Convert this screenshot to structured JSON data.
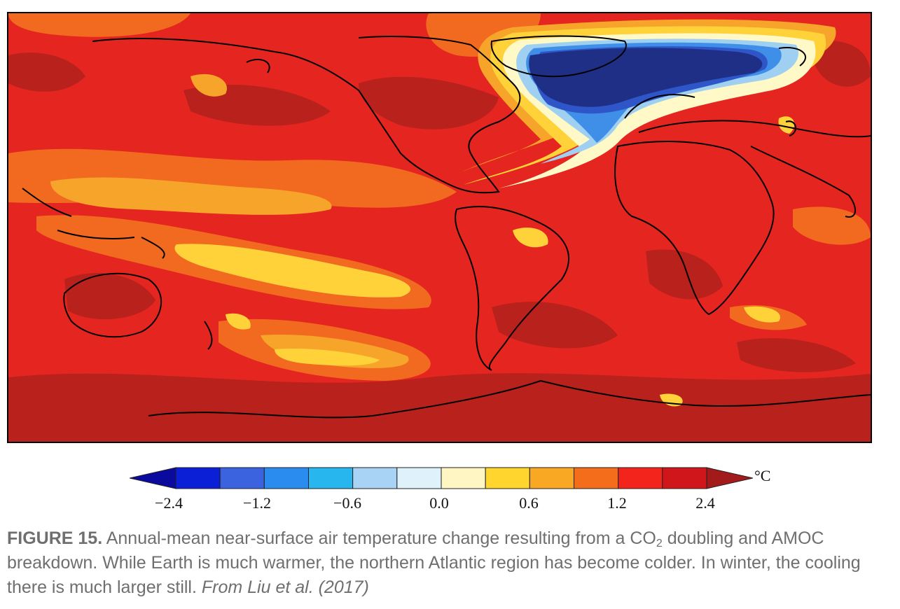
{
  "map": {
    "colors": {
      "deep_blue": "#1f2f86",
      "blue": "#2f56c9",
      "mid_blue": "#3f8ee8",
      "light_blue": "#9fd0f2",
      "pale": "#fff9c8",
      "yellow": "#ffd23a",
      "orange_light": "#f7a52a",
      "orange": "#f26a1f",
      "red": "#e5251f",
      "dark_red": "#b8211c",
      "coast": "#000000"
    }
  },
  "colorbar": {
    "unit": "°C",
    "tick_labels": [
      "−2.4",
      "−1.2",
      "−0.6",
      "0.0",
      "0.6",
      "1.2",
      "2.4"
    ],
    "bin_colors": [
      "#0a0a9e",
      "#0b1fd6",
      "#3b63e0",
      "#2b8cf0",
      "#27b7ee",
      "#a9d3f5",
      "#dff2fb",
      "#fff6c4",
      "#ffd52e",
      "#f9a823",
      "#f46d1b",
      "#f3241c",
      "#d0161a",
      "#a31a1a"
    ]
  },
  "caption": {
    "label": "FIGURE 15.",
    "text_before_sub": " Annual-mean near-surface air temperature change resulting from a CO",
    "subscript": "2",
    "text_after_sub": " doubling and AMOC breakdown. While Earth is much warmer, the northern Atlantic region has become colder. In winter, the cooling there is much larger still. ",
    "reference": "From Liu et al. (2017)"
  }
}
